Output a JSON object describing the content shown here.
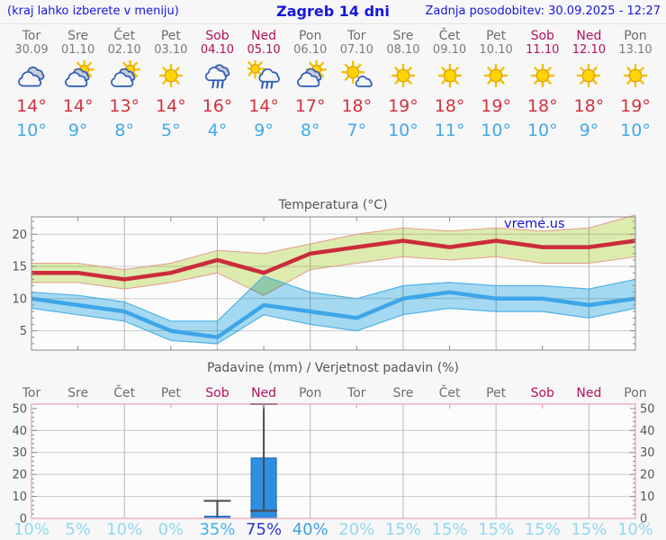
{
  "header": {
    "hint": "(kraj lahko izberete v meniju)",
    "title": "Zagreb 14 dni",
    "updated": "Zadnja posodobitev: 30.09.2025 - 12:27"
  },
  "colors": {
    "link_blue": "#1616dd",
    "weekday_text": "#6e6e6e",
    "weekend_text": "#b3125a",
    "high_temp": "#d2333f",
    "low_temp": "#42a9e8",
    "max_line": "#cb2b3c",
    "min_line": "#3ea6e8",
    "max_band": "#e0eeb0",
    "min_band": "#a6dcf4",
    "bar_fill": "#2e8ee2",
    "prob_default": "#93d8ef"
  },
  "days": [
    {
      "name": "Tor",
      "date": "30.09",
      "weekend": false,
      "icon": "cloudy",
      "high": "14°",
      "low": "10°",
      "prob": "10%",
      "prob_color": "#93d8ef"
    },
    {
      "name": "Sre",
      "date": "01.10",
      "weekend": false,
      "icon": "partly-cloudy",
      "high": "14°",
      "low": "9°",
      "prob": "5%",
      "prob_color": "#93d8ef"
    },
    {
      "name": "Čet",
      "date": "02.10",
      "weekend": false,
      "icon": "partly-cloudy",
      "high": "13°",
      "low": "8°",
      "prob": "10%",
      "prob_color": "#93d8ef"
    },
    {
      "name": "Pet",
      "date": "03.10",
      "weekend": false,
      "icon": "sunny",
      "high": "14°",
      "low": "5°",
      "prob": "0%",
      "prob_color": "#93d8ef"
    },
    {
      "name": "Sob",
      "date": "04.10",
      "weekend": true,
      "icon": "rain",
      "high": "16°",
      "low": "4°",
      "prob": "35%",
      "prob_color": "#3eb3e8"
    },
    {
      "name": "Ned",
      "date": "05.10",
      "weekend": true,
      "icon": "sun-rain",
      "high": "14°",
      "low": "9°",
      "prob": "75%",
      "prob_color": "#2a38cc"
    },
    {
      "name": "Pon",
      "date": "06.10",
      "weekend": false,
      "icon": "partly-cloudy",
      "high": "17°",
      "low": "8°",
      "prob": "40%",
      "prob_color": "#3f9fdc"
    },
    {
      "name": "Tor",
      "date": "07.10",
      "weekend": false,
      "icon": "mostly-sunny",
      "high": "18°",
      "low": "7°",
      "prob": "20%",
      "prob_color": "#93d8ef"
    },
    {
      "name": "Sre",
      "date": "08.10",
      "weekend": false,
      "icon": "sunny",
      "high": "19°",
      "low": "10°",
      "prob": "15%",
      "prob_color": "#93d8ef"
    },
    {
      "name": "Čet",
      "date": "09.10",
      "weekend": false,
      "icon": "sunny",
      "high": "18°",
      "low": "11°",
      "prob": "15%",
      "prob_color": "#93d8ef"
    },
    {
      "name": "Pet",
      "date": "10.10",
      "weekend": false,
      "icon": "sunny",
      "high": "19°",
      "low": "10°",
      "prob": "15%",
      "prob_color": "#93d8ef"
    },
    {
      "name": "Sob",
      "date": "11.10",
      "weekend": true,
      "icon": "sunny",
      "high": "18°",
      "low": "10°",
      "prob": "15%",
      "prob_color": "#93d8ef"
    },
    {
      "name": "Ned",
      "date": "12.10",
      "weekend": true,
      "icon": "sunny",
      "high": "18°",
      "low": "9°",
      "prob": "15%",
      "prob_color": "#93d8ef"
    },
    {
      "name": "Pon",
      "date": "13.10",
      "weekend": false,
      "icon": "sunny",
      "high": "19°",
      "low": "10°",
      "prob": "10%",
      "prob_color": "#93d8ef"
    }
  ],
  "chart_data": [
    {
      "type": "line",
      "title": "Temperatura (°C)",
      "watermark": "vreme.us",
      "categories": [
        "Tor",
        "Sre",
        "Čet",
        "Pet",
        "Sob",
        "Ned",
        "Pon",
        "Tor",
        "Sre",
        "Čet",
        "Pet",
        "Sob",
        "Ned",
        "Pon"
      ],
      "ylim": [
        2,
        22.7
      ],
      "yticks": [
        5,
        10,
        15,
        20
      ],
      "grid": true,
      "series": [
        {
          "name": "max",
          "color": "#cb2b3c",
          "values": [
            14,
            14,
            13,
            14,
            16,
            14,
            17,
            18,
            19,
            18,
            19,
            18,
            18,
            19
          ]
        },
        {
          "name": "max_upper",
          "values": [
            15.5,
            15.5,
            14.5,
            15.5,
            17.5,
            17,
            18.5,
            20,
            21,
            20.5,
            21,
            20.5,
            21,
            23
          ]
        },
        {
          "name": "max_lower",
          "values": [
            12.5,
            12.5,
            11.5,
            12.5,
            14,
            10.5,
            14.5,
            15.5,
            16.5,
            16,
            16.5,
            15.5,
            15.5,
            16.5
          ]
        },
        {
          "name": "min",
          "color": "#3ea6e8",
          "values": [
            10,
            9,
            8,
            5,
            4,
            9,
            8,
            7,
            10,
            11,
            10,
            10,
            9,
            10
          ]
        },
        {
          "name": "min_upper",
          "values": [
            11,
            10.5,
            9.5,
            6.5,
            6.5,
            13.5,
            11,
            10,
            12,
            12.5,
            12,
            12,
            11.5,
            13
          ]
        },
        {
          "name": "min_lower",
          "values": [
            8.5,
            7.5,
            6.5,
            3.5,
            3,
            7.5,
            6,
            5,
            7.5,
            8.5,
            8,
            8,
            7,
            8.5
          ]
        }
      ]
    },
    {
      "type": "bar",
      "title": "Padavine (mm) / Verjetnost padavin (%)",
      "categories": [
        "Tor",
        "Sre",
        "Čet",
        "Pet",
        "Sob",
        "Ned",
        "Pon",
        "Tor",
        "Sre",
        "Čet",
        "Pet",
        "Sob",
        "Ned",
        "Pon"
      ],
      "ylim": [
        0,
        52
      ],
      "yticks": [
        0,
        10,
        20,
        30,
        40,
        50
      ],
      "grid": true,
      "values": [
        0,
        0,
        0,
        0,
        1,
        27.5,
        0,
        0,
        0,
        0,
        0,
        0,
        0,
        0
      ],
      "whisker_high": [
        null,
        null,
        null,
        null,
        8,
        52,
        null,
        null,
        null,
        null,
        null,
        null,
        null,
        null
      ],
      "whisker_low": [
        null,
        null,
        null,
        null,
        0,
        3.5,
        null,
        null,
        null,
        null,
        null,
        null,
        null,
        null
      ],
      "probabilities": [
        "10%",
        "5%",
        "10%",
        "0%",
        "35%",
        "75%",
        "40%",
        "20%",
        "15%",
        "15%",
        "15%",
        "15%",
        "15%",
        "10%"
      ]
    }
  ]
}
